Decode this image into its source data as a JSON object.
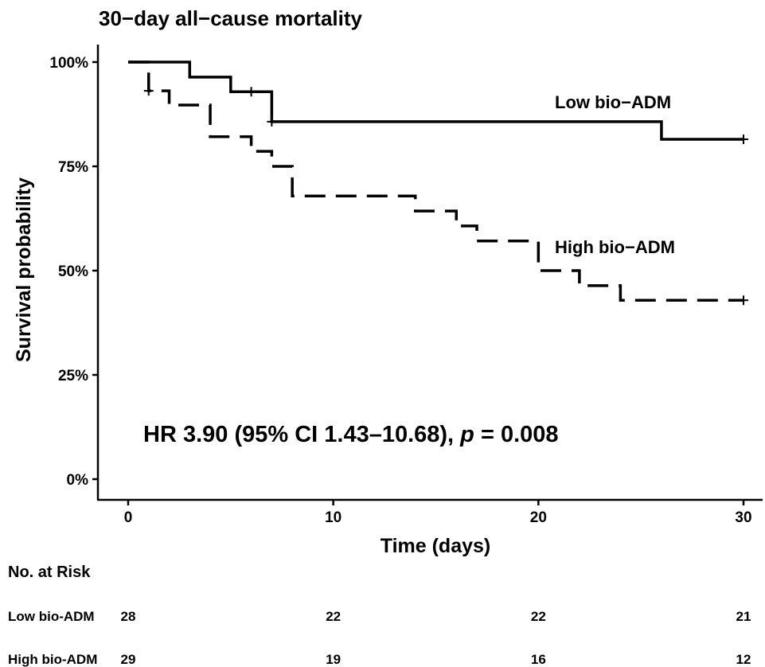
{
  "chart_data": {
    "type": "line",
    "subtype": "kaplan-meier",
    "title": "30−day all−cause mortality",
    "xlabel": "Time (days)",
    "ylabel": "Survival probability",
    "xlim": [
      0,
      30
    ],
    "ylim": [
      0,
      1
    ],
    "x_ticks": [
      0,
      10,
      20,
      30
    ],
    "x_tick_labels": [
      "0",
      "10",
      "20",
      "30"
    ],
    "y_ticks": [
      0,
      0.25,
      0.5,
      0.75,
      1.0
    ],
    "y_tick_labels": [
      "0%",
      "25%",
      "50%",
      "75%",
      "100%"
    ],
    "grid": false,
    "series": [
      {
        "name": "Low bio−ADM",
        "line_style": "solid",
        "step_times": [
          0,
          3,
          5,
          7,
          26,
          30
        ],
        "survival": [
          1.0,
          0.964,
          0.929,
          0.857,
          0.815,
          0.815
        ],
        "censor_times": [
          6,
          7,
          30
        ],
        "censor_survival": [
          0.929,
          0.857,
          0.815
        ]
      },
      {
        "name": "High bio−ADM",
        "line_style": "dashed",
        "step_times": [
          0,
          1,
          2,
          4,
          6,
          7,
          8,
          14,
          16,
          17,
          20,
          22,
          24,
          30
        ],
        "survival": [
          1.0,
          0.931,
          0.897,
          0.821,
          0.786,
          0.75,
          0.679,
          0.643,
          0.607,
          0.571,
          0.5,
          0.464,
          0.429,
          0.429
        ],
        "censor_times": [
          1,
          30
        ],
        "censor_survival": [
          0.931,
          0.429
        ]
      }
    ],
    "annotations": {
      "hr_prefix": "HR 3.90 (95% CI 1.43–10.68), ",
      "p_symbol": "p",
      "p_suffix": " = 0.008"
    },
    "risk_table": {
      "title": "No. at Risk",
      "rows": [
        {
          "label": "Low bio-ADM",
          "counts": [
            "28",
            "22",
            "22",
            "21"
          ]
        },
        {
          "label": "High bio-ADM",
          "counts": [
            "29",
            "19",
            "16",
            "12"
          ]
        }
      ]
    }
  }
}
